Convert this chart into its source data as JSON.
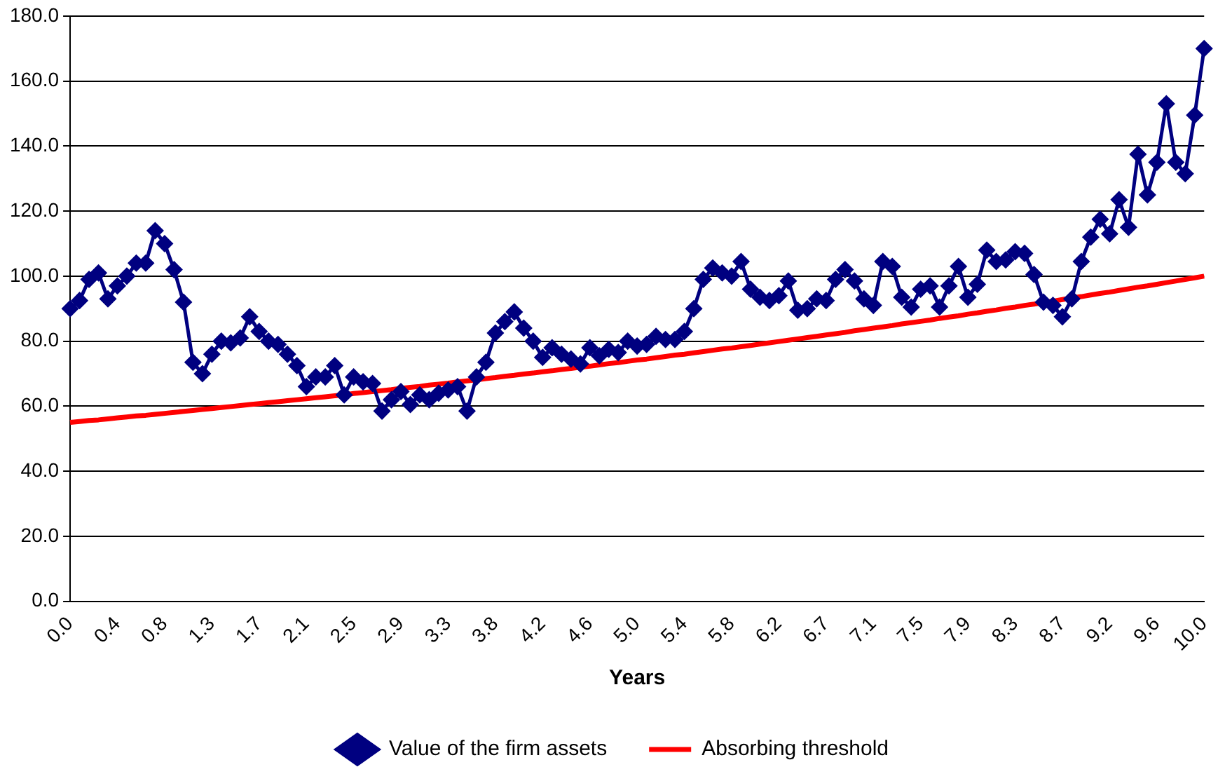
{
  "chart_data": {
    "type": "line",
    "xlabel": "Years",
    "categories": [
      "0.0",
      null,
      null,
      null,
      null,
      "0.4",
      null,
      null,
      null,
      null,
      "0.8",
      null,
      null,
      null,
      null,
      "1.3",
      null,
      null,
      null,
      null,
      "1.7",
      null,
      null,
      null,
      null,
      "2.1",
      null,
      null,
      null,
      null,
      "2.5",
      null,
      null,
      null,
      null,
      "2.9",
      null,
      null,
      null,
      null,
      "3.3",
      null,
      null,
      null,
      null,
      "3.8",
      null,
      null,
      null,
      null,
      "4.2",
      null,
      null,
      null,
      null,
      "4.6",
      null,
      null,
      null,
      null,
      "5.0",
      null,
      null,
      null,
      null,
      "5.4",
      null,
      null,
      null,
      null,
      "5.8",
      null,
      null,
      null,
      null,
      "6.2",
      null,
      null,
      null,
      null,
      "6.7",
      null,
      null,
      null,
      null,
      "7.1",
      null,
      null,
      null,
      null,
      "7.5",
      null,
      null,
      null,
      null,
      "7.9",
      null,
      null,
      null,
      null,
      "8.3",
      null,
      null,
      null,
      null,
      "8.7",
      null,
      null,
      null,
      null,
      "9.2",
      null,
      null,
      null,
      null,
      "9.6",
      null,
      null,
      null,
      null,
      "10.0"
    ],
    "series": [
      {
        "name": "Value of the firm assets",
        "color": "#000080",
        "marker": "diamond",
        "values": [
          90,
          92.5,
          99,
          101,
          93,
          97,
          100,
          104,
          104,
          114,
          110,
          102,
          92,
          73.5,
          70,
          76,
          80,
          79.5,
          81,
          87.5,
          83,
          80,
          79,
          76,
          72.5,
          66,
          69,
          69,
          72.5,
          63.5,
          69,
          67.5,
          67,
          58.5,
          62,
          64.5,
          60.5,
          63.5,
          62,
          64,
          65,
          66,
          58.5,
          69,
          73.5,
          82.5,
          86,
          89,
          84,
          80,
          75,
          78,
          76,
          74.5,
          73,
          78,
          75.5,
          77.5,
          76.5,
          80,
          78.5,
          79,
          81.5,
          80.5,
          80.5,
          83,
          90,
          99,
          102.5,
          101,
          100,
          104.5,
          96,
          93.5,
          92.5,
          94,
          98.5,
          89.5,
          90,
          93,
          92.5,
          99,
          102,
          98.5,
          93,
          91,
          104.5,
          103,
          93.5,
          90.5,
          96,
          97,
          90.5,
          97,
          103,
          93.5,
          97.5,
          108,
          104.5,
          105,
          107.5,
          107,
          100.5,
          92,
          91,
          87.5,
          93,
          104.5,
          112,
          117.5,
          113,
          123.5,
          115,
          137.5,
          125,
          135,
          153,
          135,
          131.5,
          149.5,
          170
        ]
      },
      {
        "name": "Absorbing threshold",
        "color": "#ff0000",
        "marker": "none",
        "values": [
          55.0,
          55.3,
          55.6,
          55.8,
          56.1,
          56.4,
          56.7,
          57.0,
          57.2,
          57.5,
          57.8,
          58.1,
          58.4,
          58.7,
          59.0,
          59.3,
          59.6,
          59.9,
          60.2,
          60.5,
          60.8,
          61.1,
          61.4,
          61.7,
          62.0,
          62.3,
          62.6,
          62.9,
          63.2,
          63.5,
          63.9,
          64.2,
          64.5,
          64.8,
          65.1,
          65.5,
          65.8,
          66.1,
          66.5,
          66.8,
          67.1,
          67.5,
          67.8,
          68.1,
          68.5,
          68.8,
          69.2,
          69.5,
          69.9,
          70.2,
          70.6,
          70.9,
          71.3,
          71.6,
          72.0,
          72.3,
          72.7,
          73.1,
          73.4,
          73.8,
          74.2,
          74.5,
          74.9,
          75.3,
          75.7,
          76.0,
          76.4,
          76.8,
          77.2,
          77.6,
          77.9,
          78.3,
          78.7,
          79.1,
          79.5,
          79.9,
          80.3,
          80.7,
          81.1,
          81.5,
          81.9,
          82.3,
          82.7,
          83.2,
          83.6,
          84.0,
          84.4,
          84.8,
          85.3,
          85.7,
          86.1,
          86.5,
          87.0,
          87.4,
          87.8,
          88.3,
          88.7,
          89.2,
          89.6,
          90.1,
          90.5,
          91.0,
          91.4,
          91.9,
          92.3,
          92.8,
          93.3,
          93.7,
          94.2,
          94.7,
          95.1,
          95.6,
          96.1,
          96.6,
          97.0,
          97.5,
          98.0,
          98.5,
          99.0,
          99.5,
          100.0
        ]
      }
    ],
    "ylim": [
      0,
      180
    ],
    "yticks": [
      {
        "value": 0,
        "label": "0.0"
      },
      {
        "value": 20,
        "label": "20.0"
      },
      {
        "value": 40,
        "label": "40.0"
      },
      {
        "value": 60,
        "label": "60.0"
      },
      {
        "value": 80,
        "label": "80.0"
      },
      {
        "value": 100,
        "label": "100.0"
      },
      {
        "value": 120,
        "label": "120.0"
      },
      {
        "value": 140,
        "label": "140.0"
      },
      {
        "value": 160,
        "label": "160.0"
      },
      {
        "value": 180,
        "label": "180.0"
      }
    ],
    "grid": "y",
    "legend": "bottom",
    "line_style": "solid"
  }
}
